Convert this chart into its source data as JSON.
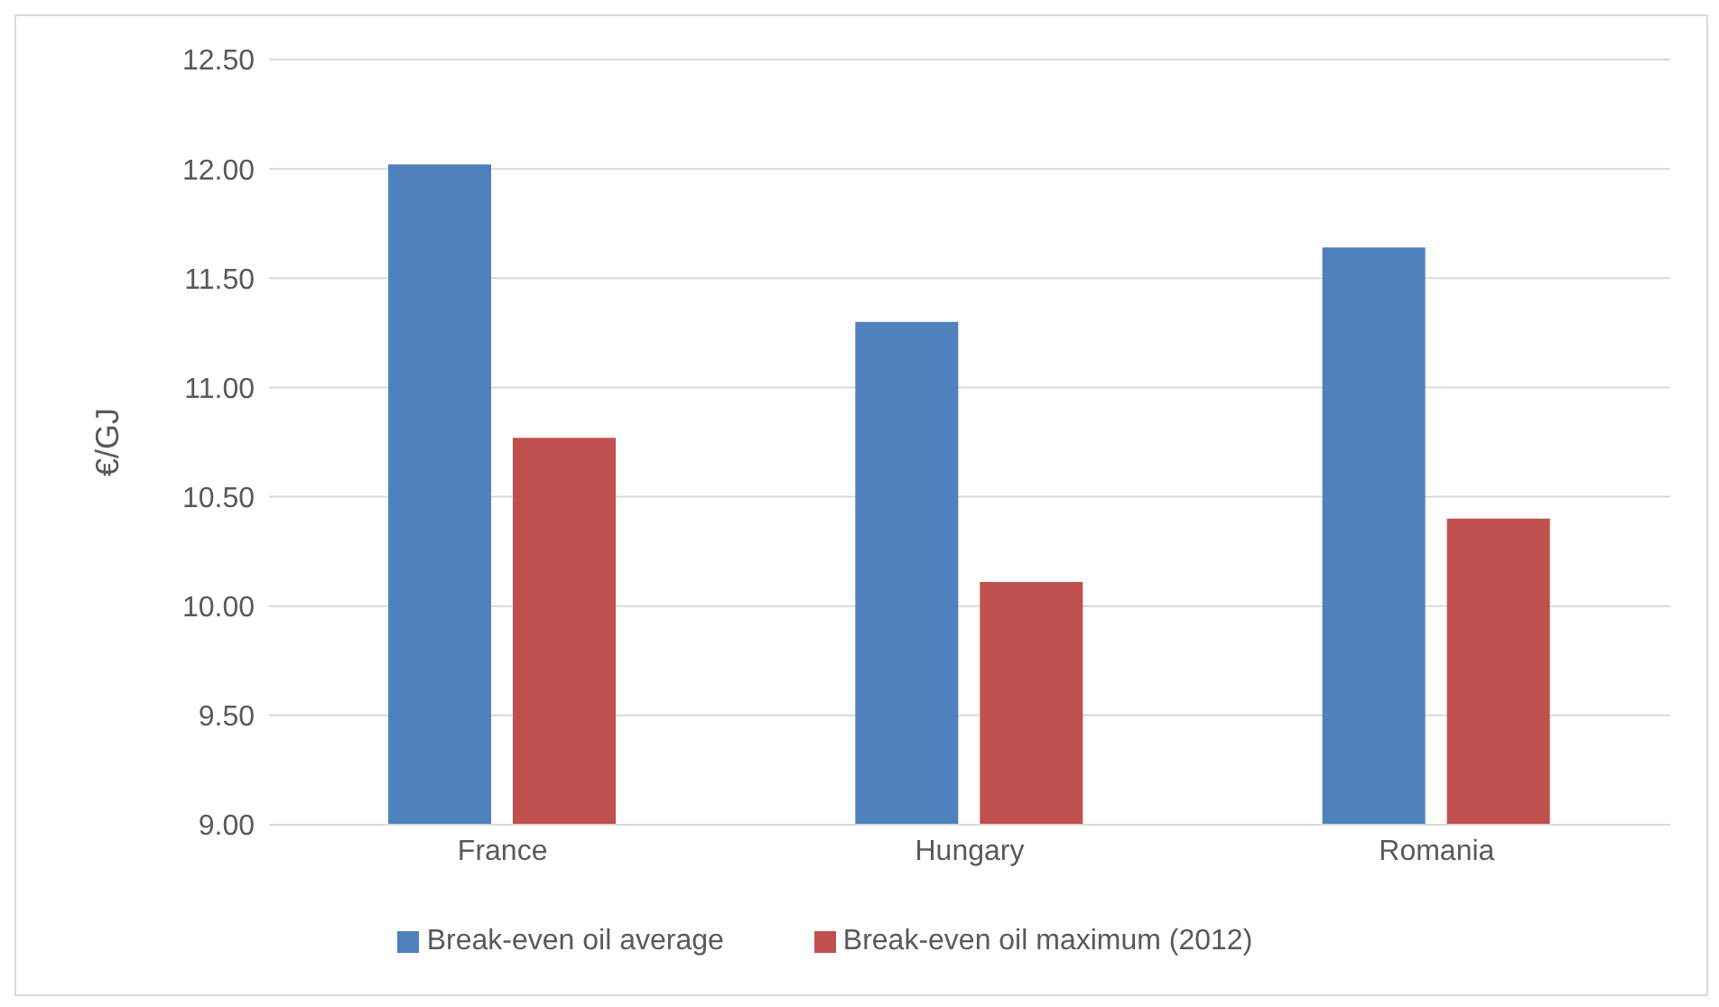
{
  "chart_data": {
    "type": "bar",
    "ylabel": "€/GJ",
    "categories": [
      "France",
      "Hungary",
      "Romania"
    ],
    "series": [
      {
        "name": "Break-even oil average",
        "color": "#4f81bd",
        "values": [
          12.02,
          11.3,
          11.64
        ]
      },
      {
        "name": "Break-even oil maximum (2012)",
        "color": "#c0504d",
        "values": [
          10.77,
          10.11,
          10.4
        ]
      }
    ],
    "ylim": [
      9,
      12.5
    ],
    "yticks": [
      {
        "value": 9,
        "label": "9.00"
      },
      {
        "value": 9.5,
        "label": "9.50"
      },
      {
        "value": 10,
        "label": "10.00"
      },
      {
        "value": 10.5,
        "label": "10.50"
      },
      {
        "value": 11,
        "label": "11.00"
      },
      {
        "value": 11.5,
        "label": "11.50"
      },
      {
        "value": 12,
        "label": "12.00"
      },
      {
        "value": 12.5,
        "label": "12.50"
      }
    ],
    "grid": "y",
    "legend": "bottom"
  }
}
